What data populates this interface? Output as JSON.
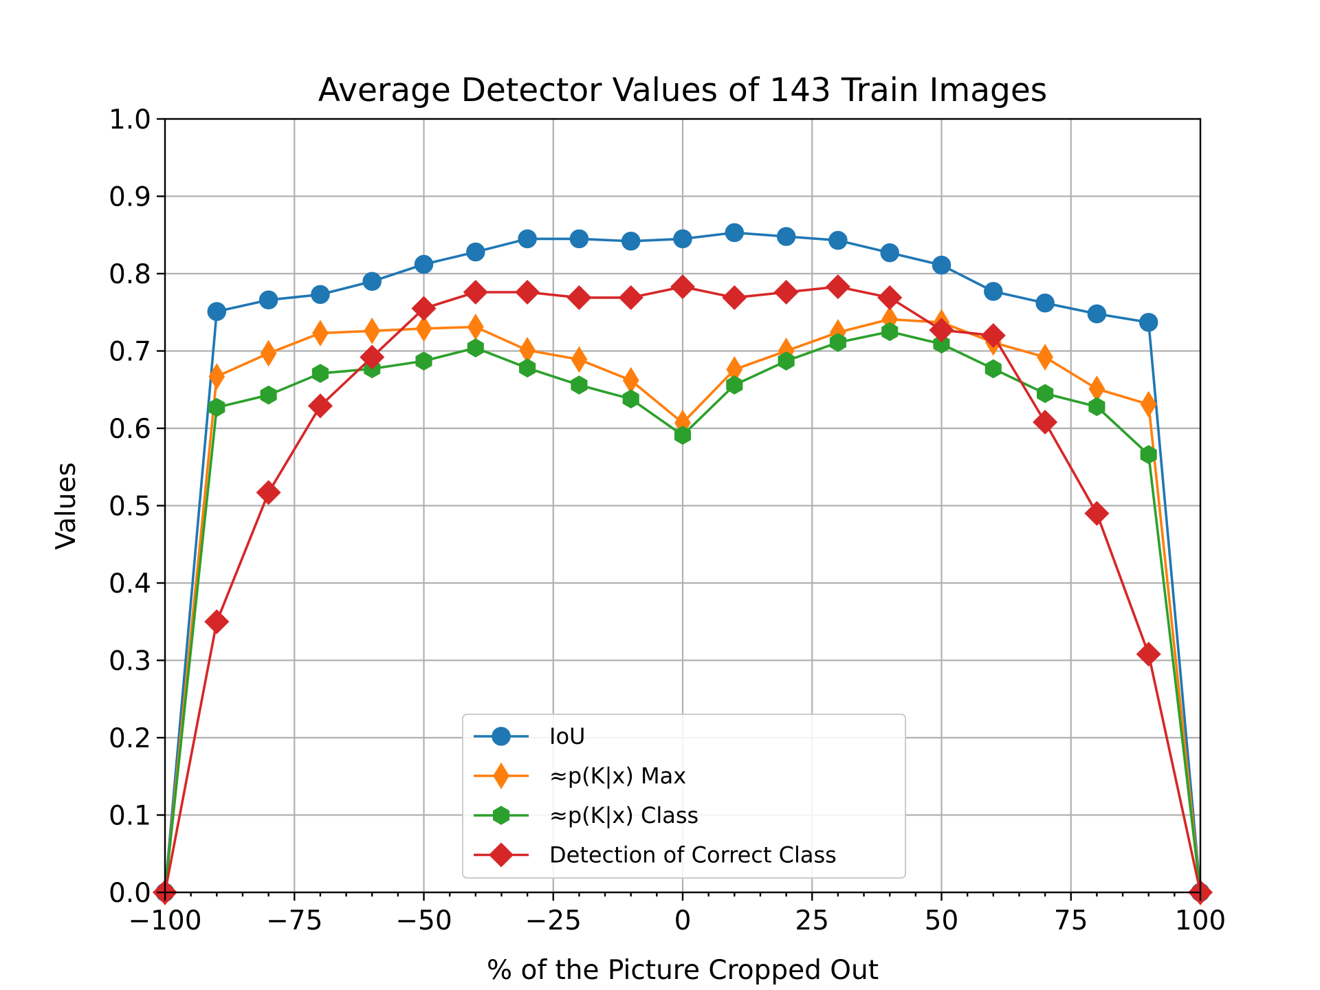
{
  "chart_data": {
    "type": "line",
    "title": "Average Detector Values of 143 Train Images",
    "xlabel": "% of the Picture Cropped Out",
    "ylabel": "Values",
    "xlim": [
      -100,
      100
    ],
    "ylim": [
      0.0,
      1.0
    ],
    "xticks": [
      -100,
      -75,
      -50,
      -25,
      0,
      25,
      50,
      75,
      100
    ],
    "xtick_labels": [
      "−100",
      "−75",
      "−50",
      "−25",
      "0",
      "25",
      "50",
      "75",
      "100"
    ],
    "yticks": [
      0.0,
      0.1,
      0.2,
      0.3,
      0.4,
      0.5,
      0.6,
      0.7,
      0.8,
      0.9,
      1.0
    ],
    "ytick_labels": [
      "0.0",
      "0.1",
      "0.2",
      "0.3",
      "0.4",
      "0.5",
      "0.6",
      "0.7",
      "0.8",
      "0.9",
      "1.0"
    ],
    "grid": true,
    "legend_position": "bottom-center",
    "x": [
      -100,
      -90,
      -80,
      -70,
      -60,
      -50,
      -40,
      -30,
      -20,
      -10,
      0,
      10,
      20,
      30,
      40,
      50,
      60,
      70,
      80,
      90,
      100
    ],
    "series": [
      {
        "name": "IoU",
        "color": "#1f77b4",
        "marker": "circle",
        "values": [
          0.0,
          0.751,
          0.766,
          0.773,
          0.79,
          0.812,
          0.828,
          0.845,
          0.845,
          0.842,
          0.845,
          0.853,
          0.848,
          0.843,
          0.827,
          0.811,
          0.777,
          0.762,
          0.748,
          0.737,
          0.0
        ]
      },
      {
        "name": "≈p(K|x) Max",
        "color": "#ff7f0e",
        "marker": "thin-diamond",
        "values": [
          0.0,
          0.667,
          0.697,
          0.723,
          0.726,
          0.729,
          0.731,
          0.701,
          0.689,
          0.662,
          0.607,
          0.676,
          0.7,
          0.724,
          0.741,
          0.737,
          0.711,
          0.692,
          0.651,
          0.631,
          0.0
        ]
      },
      {
        "name": "≈p(K|x) Class",
        "color": "#2ca02c",
        "marker": "hexagon",
        "values": [
          0.0,
          0.627,
          0.643,
          0.671,
          0.677,
          0.687,
          0.704,
          0.678,
          0.656,
          0.638,
          0.591,
          0.656,
          0.687,
          0.711,
          0.725,
          0.709,
          0.677,
          0.645,
          0.628,
          0.566,
          0.0
        ]
      },
      {
        "name": "Detection of Correct Class",
        "color": "#d62728",
        "marker": "diamond",
        "values": [
          0.0,
          0.35,
          0.517,
          0.629,
          0.692,
          0.755,
          0.776,
          0.776,
          0.769,
          0.769,
          0.783,
          0.769,
          0.776,
          0.783,
          0.769,
          0.727,
          0.72,
          0.608,
          0.49,
          0.308,
          0.0
        ]
      }
    ]
  }
}
